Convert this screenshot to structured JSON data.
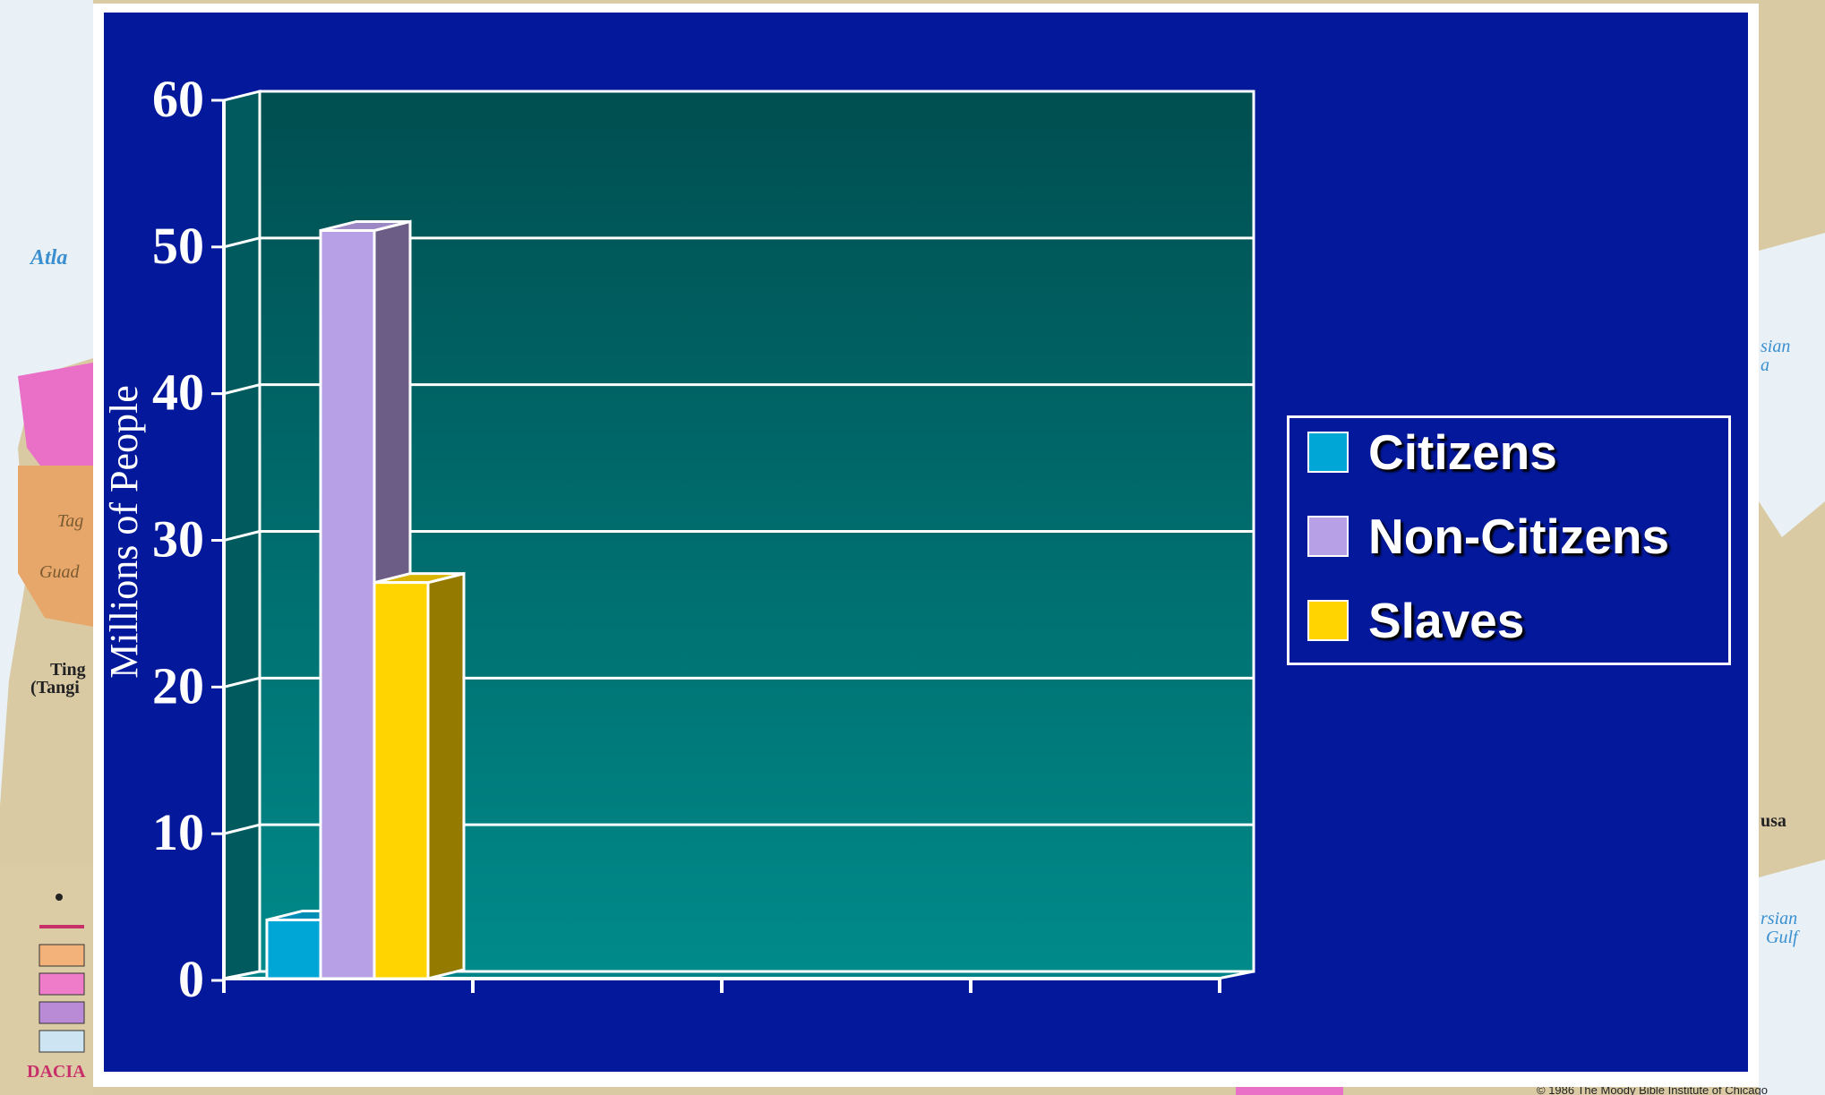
{
  "chart_data": {
    "type": "bar",
    "title": "",
    "xlabel": "",
    "ylabel": "Millions of People",
    "ylim": [
      0,
      60
    ],
    "yticks": [
      "0",
      "10",
      "20",
      "30",
      "40",
      "50",
      "60"
    ],
    "categories": [
      ""
    ],
    "series": [
      {
        "name": "Citizens",
        "values": [
          4
        ],
        "color": "#00a6d6"
      },
      {
        "name": "Non-Citizens",
        "values": [
          51
        ],
        "color": "#b8a0e6"
      },
      {
        "name": "Slaves",
        "values": [
          27
        ],
        "color": "#ffd400"
      }
    ],
    "grid": true,
    "legend_position": "right",
    "style": "3d",
    "colors": {
      "slide_background": "#03189a",
      "plot_top": "#004e50",
      "plot_bottom": "#008a8a"
    }
  },
  "map_fragments": {
    "labels": [
      "Atla",
      "Tag",
      "Guad",
      "Ting",
      "(Tangi",
      "DACIA",
      "sian",
      "a",
      "usa",
      "rsian",
      "Gulf"
    ],
    "copyright": "© 1986 The Moody Bible Institute of Chicago"
  }
}
